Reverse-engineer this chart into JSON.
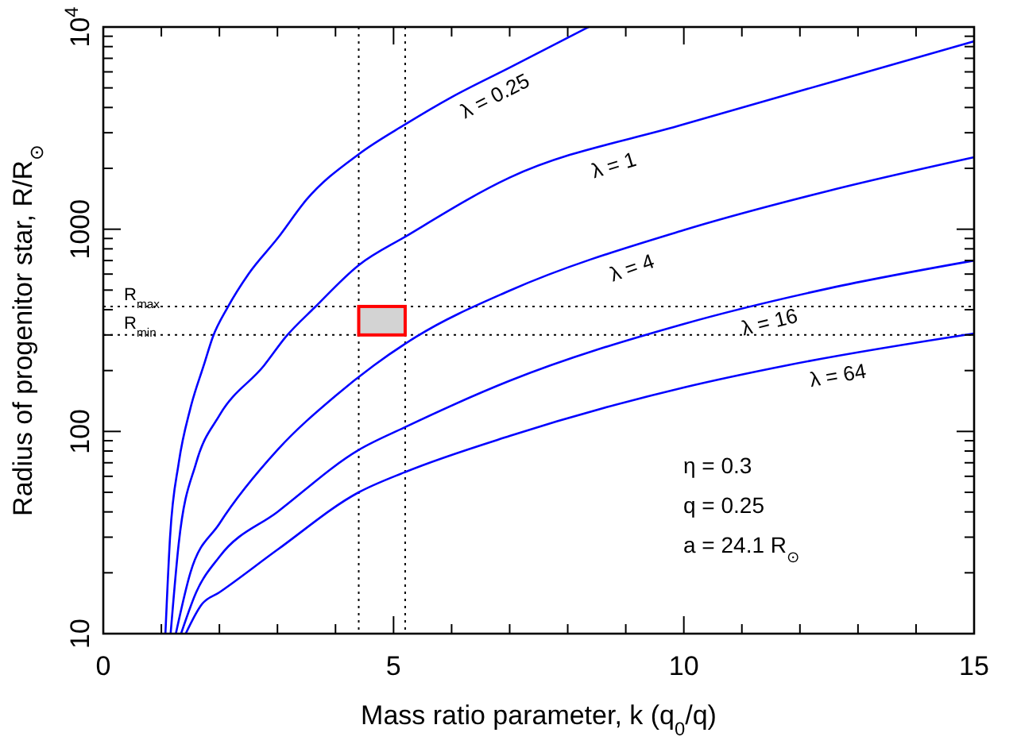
{
  "chart_data": {
    "type": "line",
    "xlabel": "Mass ratio parameter, k (q$_{0}$/q)",
    "ylabel": "Radius of progenitor star, R/R$_{⊙}$",
    "log": "y",
    "grid": false,
    "marker": "none",
    "line_style": "solid",
    "xlim": [
      0,
      15
    ],
    "xticks": [
      0,
      {
        "value": 1,
        "label": null
      },
      {
        "value": 2,
        "label": null
      },
      {
        "value": 3,
        "label": null
      },
      {
        "value": 4,
        "label": null
      },
      5,
      {
        "value": 6,
        "label": null
      },
      {
        "value": 7,
        "label": null
      },
      {
        "value": 8,
        "label": null
      },
      {
        "value": 9,
        "label": null
      },
      10,
      {
        "value": 11,
        "label": null
      },
      {
        "value": 12,
        "label": null
      },
      {
        "value": 13,
        "label": null
      },
      {
        "value": 14,
        "label": null
      },
      15
    ],
    "ylim": [
      10,
      10000
    ],
    "yticks": [
      10,
      {
        "value": 20,
        "label": null
      },
      {
        "value": 30,
        "label": null
      },
      {
        "value": 40,
        "label": null
      },
      {
        "value": 50,
        "label": null
      },
      {
        "value": 60,
        "label": null
      },
      {
        "value": 70,
        "label": null
      },
      {
        "value": 80,
        "label": null
      },
      {
        "value": 90,
        "label": null
      },
      100,
      {
        "value": 200,
        "label": null
      },
      {
        "value": 300,
        "label": null
      },
      {
        "value": 400,
        "label": null
      },
      {
        "value": 500,
        "label": null
      },
      {
        "value": 600,
        "label": null
      },
      {
        "value": 700,
        "label": null
      },
      {
        "value": 800,
        "label": null
      },
      {
        "value": 900,
        "label": null
      },
      1000,
      {
        "value": 2000,
        "label": null
      },
      {
        "value": 3000,
        "label": null
      },
      {
        "value": 4000,
        "label": null
      },
      {
        "value": 5000,
        "label": null
      },
      {
        "value": 6000,
        "label": null
      },
      {
        "value": 7000,
        "label": null
      },
      {
        "value": 8000,
        "label": null
      },
      {
        "value": 9000,
        "label": null
      },
      {
        "value": 10000,
        "label": "10$^{4}$"
      }
    ],
    "series": [
      {
        "name": "λ = 0.25",
        "color": "#0000ff",
        "x": [
          1.07,
          1.15,
          1.3,
          1.5,
          1.73,
          1.89,
          2.14,
          2.5,
          3,
          3.5,
          4.4,
          5.2,
          6,
          7,
          8.36
        ],
        "values": [
          10,
          30,
          70,
          130,
          212,
          295,
          410,
          600,
          900,
          1400,
          2350,
          3300,
          4500,
          6300,
          10000
        ]
      },
      {
        "name": "λ = 1",
        "color": "#0000ff",
        "x": [
          1.16,
          1.3,
          1.6,
          2,
          2.77,
          3.15,
          3.64,
          4.4,
          5.2,
          7,
          10,
          12.5,
          15
        ],
        "values": [
          10,
          28,
          70,
          120,
          212,
          295,
          410,
          664,
          918,
          1800,
          3300,
          5300,
          8500
        ]
      },
      {
        "name": "λ = 4",
        "color": "#0000ff",
        "x": [
          1.25,
          1.5,
          2,
          3,
          4,
          4.66,
          5.4,
          7,
          10,
          12.5,
          15
        ],
        "values": [
          10,
          20,
          35,
          81,
          150,
          212,
          295,
          497,
          990,
          1550,
          2270
        ]
      },
      {
        "name": "λ = 16",
        "color": "#0000ff",
        "x": [
          1.34,
          1.6,
          2,
          3,
          4.4,
          5.2,
          7,
          10,
          12.5,
          15
        ],
        "values": [
          10,
          16,
          24,
          40,
          81,
          105,
          178,
          340,
          510,
          700
        ]
      },
      {
        "name": "λ = 64",
        "color": "#0000ff",
        "x": [
          1.42,
          1.7,
          2,
          3,
          4.4,
          5.2,
          7,
          10,
          11.8,
          15
        ],
        "values": [
          10,
          14,
          16,
          26,
          50,
          63,
          95,
          165,
          213,
          305
        ]
      }
    ],
    "ref_lines": [
      {
        "axis": "x",
        "value": 4.4,
        "label": null,
        "color": "#000000",
        "line_style": "dotted"
      },
      {
        "axis": "x",
        "value": 5.2,
        "label": null,
        "color": "#000000",
        "line_style": "dotted"
      },
      {
        "axis": "y",
        "value": 415,
        "label": "R$_{max}$",
        "color": "#000000",
        "line_style": "dotted"
      },
      {
        "axis": "y",
        "value": 300,
        "label": "R$_{min}$",
        "color": "#000000",
        "line_style": "dotted"
      }
    ],
    "annotations": [
      "η = 0.3",
      "q = 0.25",
      "a = 24.1 R$_{⊙}$"
    ]
  }
}
